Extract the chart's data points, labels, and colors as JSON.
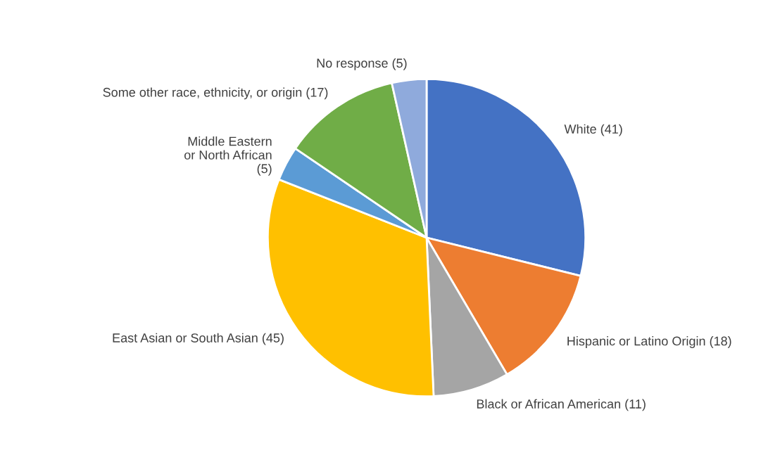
{
  "chart_data": {
    "type": "pie",
    "categories": [
      "White (41)",
      "Hispanic or Latino Origin (18)",
      "Black or African American (11)",
      "East Asian or South Asian (45)",
      "Middle Eastern\nor North African\n(5)",
      "Some other race, ethnicity, or origin (17)",
      "No response (5)"
    ],
    "values": [
      41,
      18,
      11,
      45,
      5,
      17,
      5
    ],
    "colors": [
      "#4472c4",
      "#ed7d31",
      "#a5a5a5",
      "#ffc000",
      "#5b9bd5",
      "#70ad47",
      "#8faadc"
    ],
    "legend": false
  }
}
